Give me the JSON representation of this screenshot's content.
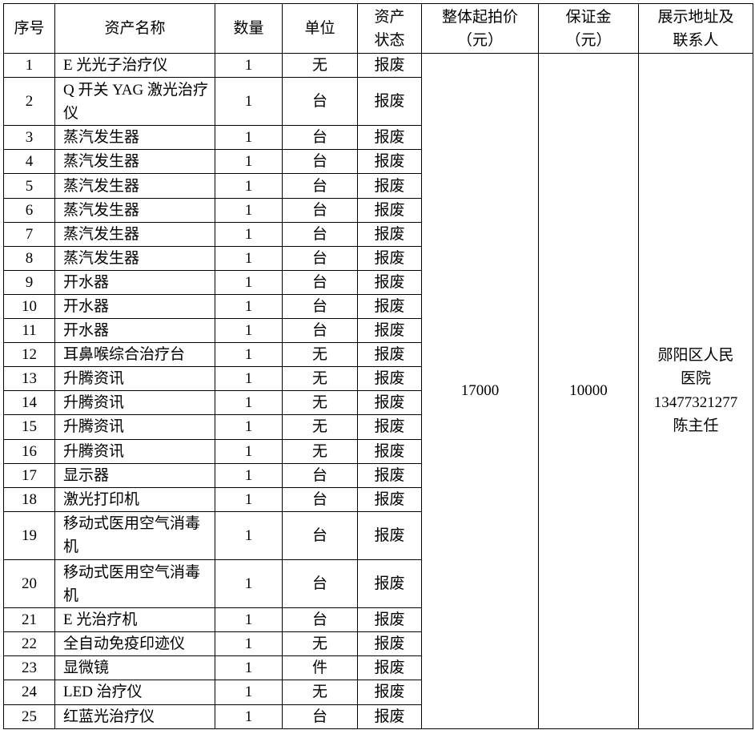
{
  "headers": {
    "index": "序号",
    "name": "资产名称",
    "quantity": "数量",
    "unit": "单位",
    "status_1": "资产",
    "status_2": "状态",
    "price_1": "整体起拍价",
    "price_2": "（元）",
    "deposit_1": "保证金",
    "deposit_2": "（元）",
    "contact_1": "展示地址及",
    "contact_2": "联系人"
  },
  "rows": [
    {
      "no": "1",
      "name": "E 光光子治疗仪",
      "qty": "1",
      "unit": "无",
      "status": "报废",
      "tall": false
    },
    {
      "no": "2",
      "name": "Q 开关 YAG 激光治疗仪",
      "qty": "1",
      "unit": "台",
      "status": "报废",
      "tall": true
    },
    {
      "no": "3",
      "name": "蒸汽发生器",
      "qty": "1",
      "unit": "台",
      "status": "报废",
      "tall": false
    },
    {
      "no": "4",
      "name": "蒸汽发生器",
      "qty": "1",
      "unit": "台",
      "status": "报废",
      "tall": false
    },
    {
      "no": "5",
      "name": "蒸汽发生器",
      "qty": "1",
      "unit": "台",
      "status": "报废",
      "tall": false
    },
    {
      "no": "6",
      "name": "蒸汽发生器",
      "qty": "1",
      "unit": "台",
      "status": "报废",
      "tall": false
    },
    {
      "no": "7",
      "name": "蒸汽发生器",
      "qty": "1",
      "unit": "台",
      "status": "报废",
      "tall": false
    },
    {
      "no": "8",
      "name": "蒸汽发生器",
      "qty": "1",
      "unit": "台",
      "status": "报废",
      "tall": false
    },
    {
      "no": "9",
      "name": "开水器",
      "qty": "1",
      "unit": "台",
      "status": "报废",
      "tall": false
    },
    {
      "no": "10",
      "name": "开水器",
      "qty": "1",
      "unit": "台",
      "status": "报废",
      "tall": false
    },
    {
      "no": "11",
      "name": "开水器",
      "qty": "1",
      "unit": "台",
      "status": "报废",
      "tall": false
    },
    {
      "no": "12",
      "name": "耳鼻喉综合治疗台",
      "qty": "1",
      "unit": "无",
      "status": "报废",
      "tall": false
    },
    {
      "no": "13",
      "name": "升腾资讯",
      "qty": "1",
      "unit": "无",
      "status": "报废",
      "tall": false
    },
    {
      "no": "14",
      "name": "升腾资讯",
      "qty": "1",
      "unit": "无",
      "status": "报废",
      "tall": false
    },
    {
      "no": "15",
      "name": "升腾资讯",
      "qty": "1",
      "unit": "无",
      "status": "报废",
      "tall": false
    },
    {
      "no": "16",
      "name": "升腾资讯",
      "qty": "1",
      "unit": "无",
      "status": "报废",
      "tall": false
    },
    {
      "no": "17",
      "name": "显示器",
      "qty": "1",
      "unit": "台",
      "status": "报废",
      "tall": false
    },
    {
      "no": "18",
      "name": "激光打印机",
      "qty": "1",
      "unit": "台",
      "status": "报废",
      "tall": false
    },
    {
      "no": "19",
      "name": "移动式医用空气消毒机",
      "qty": "1",
      "unit": "台",
      "status": "报废",
      "tall": true
    },
    {
      "no": "20",
      "name": "移动式医用空气消毒机",
      "qty": "1",
      "unit": "台",
      "status": "报废",
      "tall": true
    },
    {
      "no": "21",
      "name": "E 光治疗机",
      "qty": "1",
      "unit": "台",
      "status": "报废",
      "tall": false
    },
    {
      "no": "22",
      "name": "全自动免疫印迹仪",
      "qty": "1",
      "unit": "无",
      "status": "报废",
      "tall": false
    },
    {
      "no": "23",
      "name": "显微镜",
      "qty": "1",
      "unit": "件",
      "status": "报废",
      "tall": false
    },
    {
      "no": "24",
      "name": "LED 治疗仪",
      "qty": "1",
      "unit": "无",
      "status": "报废",
      "tall": false
    },
    {
      "no": "25",
      "name": "红蓝光治疗仪",
      "qty": "1",
      "unit": "台",
      "status": "报废",
      "tall": false
    }
  ],
  "merged": {
    "price": "17000",
    "deposit": "10000",
    "contact_lines": [
      "郧阳区人民",
      "医院",
      "13477321277",
      "陈主任"
    ]
  }
}
